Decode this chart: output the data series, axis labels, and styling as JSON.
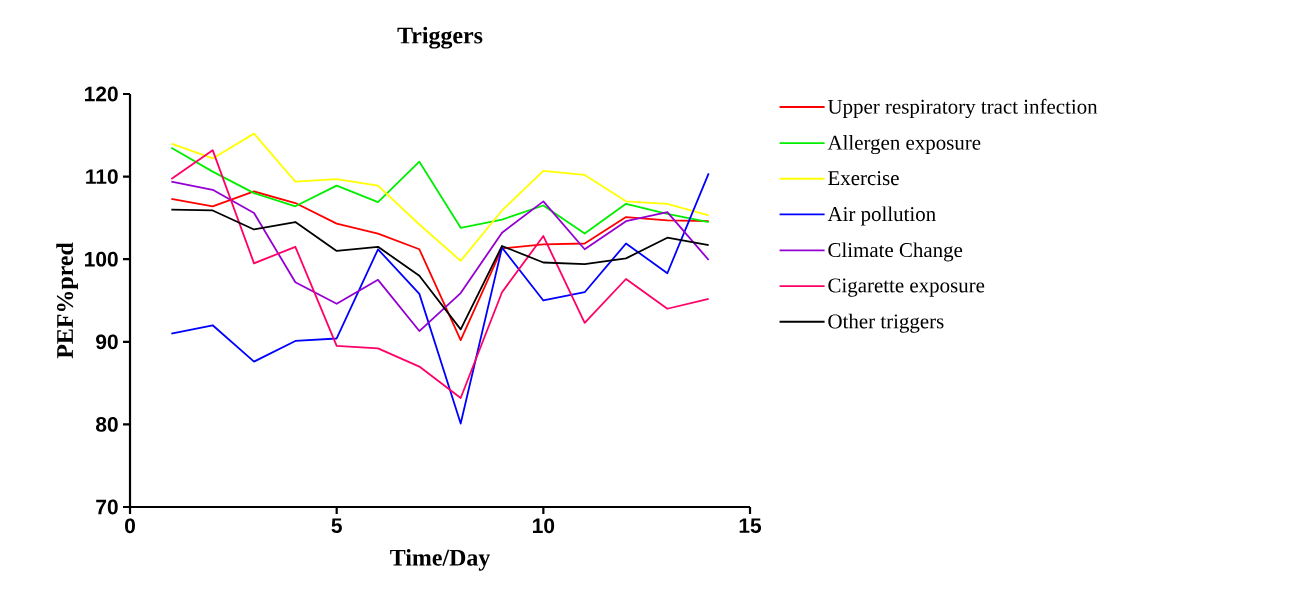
{
  "chart_data": {
    "type": "line",
    "title": "Triggers",
    "xlabel": "Time/Day",
    "ylabel": "PEF%pred",
    "x": [
      1,
      2,
      3,
      4,
      5,
      6,
      7,
      8,
      9,
      10,
      11,
      12,
      13,
      14
    ],
    "xlim": [
      0,
      15
    ],
    "xticks": [
      0,
      5,
      10,
      15
    ],
    "ylim": [
      70,
      120
    ],
    "yticks": [
      70,
      80,
      90,
      100,
      110,
      120
    ],
    "grid": false,
    "legend": "right",
    "marker": "none",
    "line_style": "solid",
    "series": [
      {
        "name": "Upper respiratory tract infection",
        "color": "#ff0000",
        "values": [
          107.3,
          106.4,
          108.2,
          106.8,
          104.3,
          103.1,
          101.2,
          90.2,
          101.3,
          101.8,
          101.9,
          105.1,
          104.7,
          104.6
        ]
      },
      {
        "name": "Allergen exposure",
        "color": "#00ee00",
        "values": [
          113.5,
          110.6,
          108.0,
          106.4,
          108.9,
          106.9,
          111.8,
          103.8,
          104.8,
          106.5,
          103.1,
          106.7,
          105.5,
          104.5
        ]
      },
      {
        "name": "Exercise",
        "color": "#ffff00",
        "values": [
          114.0,
          112.2,
          115.2,
          109.4,
          109.7,
          108.9,
          104.2,
          99.8,
          105.9,
          110.7,
          110.2,
          107.0,
          106.7,
          105.3
        ]
      },
      {
        "name": "Air pollution",
        "color": "#0000ff",
        "values": [
          91.0,
          92.0,
          87.6,
          90.1,
          90.4,
          101.2,
          95.8,
          80.1,
          101.4,
          95.0,
          96.0,
          101.9,
          98.3,
          110.4
        ]
      },
      {
        "name": "Climate Change",
        "color": "#9400d3",
        "values": [
          109.4,
          108.4,
          105.6,
          97.2,
          94.6,
          97.5,
          91.3,
          95.9,
          103.2,
          107.0,
          101.2,
          104.6,
          105.7,
          99.9
        ]
      },
      {
        "name": "Cigarette exposure",
        "color": "#ff0066",
        "values": [
          109.7,
          113.2,
          99.5,
          101.5,
          89.5,
          89.2,
          87.0,
          83.2,
          96.0,
          102.8,
          92.3,
          97.6,
          94.0,
          95.2
        ]
      },
      {
        "name": "Other triggers",
        "color": "#000000",
        "values": [
          106.0,
          105.9,
          103.6,
          104.5,
          101.0,
          101.5,
          98.0,
          91.5,
          101.6,
          99.6,
          99.4,
          100.1,
          102.6,
          101.7
        ]
      }
    ]
  }
}
